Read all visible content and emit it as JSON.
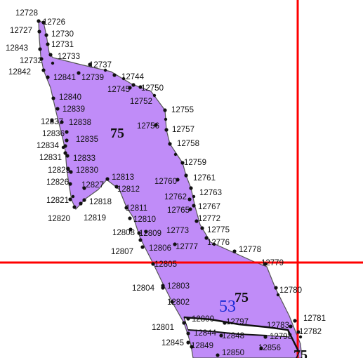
{
  "map": {
    "colors": {
      "parcel_fill": "#c08cf8",
      "parcel_edge": "#555555",
      "vertex": "#111111",
      "grid_line": "#ff0000",
      "zone_label": "#1a2bd6"
    },
    "parcel_labels": [
      "75",
      "75",
      "75"
    ],
    "zone_label": "53",
    "vertex_labels": [
      "12728",
      "12726",
      "12727",
      "12730",
      "12731",
      "12843",
      "12733",
      "12732",
      "12737",
      "12842",
      "12841",
      "12739",
      "12744",
      "12745",
      "12750",
      "12752",
      "12840",
      "12839",
      "12755",
      "12838",
      "12837",
      "12836",
      "12756",
      "12757",
      "12835",
      "12834",
      "12758",
      "12833",
      "12831",
      "12759",
      "12829",
      "12830",
      "12813",
      "12760",
      "12761",
      "12826",
      "12827",
      "12812",
      "12763",
      "12821",
      "12818",
      "12762",
      "12811",
      "12767",
      "12765",
      "12810",
      "12772",
      "12820",
      "12819",
      "12775",
      "12773",
      "12808",
      "12809",
      "12776",
      "12777",
      "12806",
      "12778",
      "12807",
      "12779",
      "12805",
      "12803",
      "12804",
      "12780",
      "12802",
      "12800",
      "12797",
      "12781",
      "12783",
      "12801",
      "12782",
      "12844",
      "12848",
      "12793",
      "12845",
      "12849",
      "12856",
      "12850"
    ]
  }
}
